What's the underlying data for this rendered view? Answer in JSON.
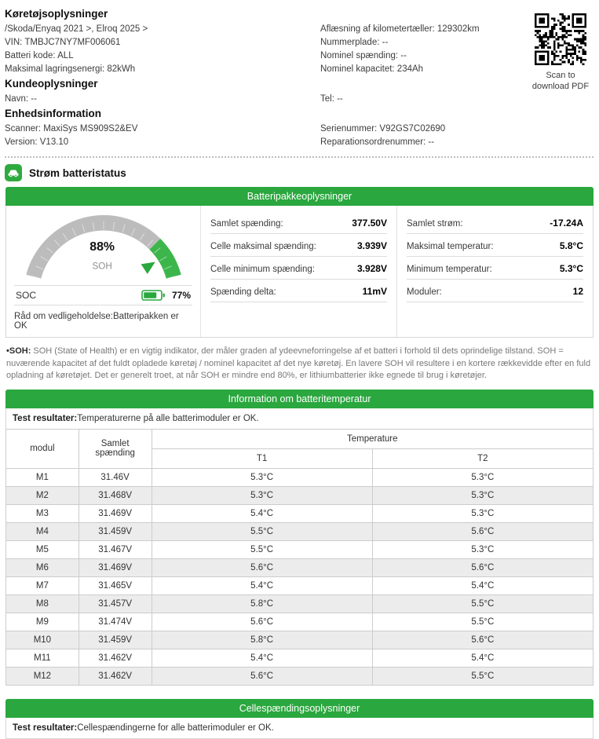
{
  "accent": {
    "green": "#2aa73e",
    "gauge_green": "#3cb64b",
    "gauge_gray": "#bcbcbc"
  },
  "vehicle_info": {
    "title": "Køretøjsoplysninger",
    "left_lines": [
      "/Skoda/Enyaq 2021 >, Elroq 2025 >",
      "VIN: TMBJC7NY7MF006061",
      "Batteri kode: ALL",
      "Maksimal lagringsenergi: 82kWh"
    ],
    "right_lines": [
      "Aflæsning af kilometertæller: 129302km",
      "Nummerplade: --",
      "Nominel spænding: --",
      "Nominel kapacitet: 234Ah"
    ],
    "qr_caption": "Scan to download PDF"
  },
  "customer_info": {
    "title": "Kundeoplysninger",
    "left_lines": [
      "Navn: --"
    ],
    "right_lines": [
      "Tel: --"
    ]
  },
  "device_info": {
    "title": "Enhedsinformation",
    "left_lines": [
      "Scanner: MaxiSys MS909S2&EV",
      "Version: V13.10"
    ],
    "right_lines": [
      "Serienummer: V92GS7C02690",
      "Reparationsordrenummer: --"
    ]
  },
  "report": {
    "section_title": "Strøm batteristatus"
  },
  "battery_pack": {
    "header": "Batteripakkeoplysninger",
    "soh_percent": "88%",
    "soh_label": "SOH",
    "soc_label": "SOC",
    "soc_percent": "77%",
    "advice": "Råd om vedligeholdelse:Batteripakken er OK",
    "metrics_col1": [
      {
        "label": "Samlet spænding:",
        "value": "377.50V"
      },
      {
        "label": "Celle maksimal spænding:",
        "value": "3.939V"
      },
      {
        "label": "Celle minimum spænding:",
        "value": "3.928V"
      },
      {
        "label": "Spænding delta:",
        "value": "11mV"
      }
    ],
    "metrics_col2": [
      {
        "label": "Samlet strøm:",
        "value": "-17.24A"
      },
      {
        "label": "Maksimal temperatur:",
        "value": "5.8°C"
      },
      {
        "label": "Minimum temperatur:",
        "value": "5.3°C"
      },
      {
        "label": "Moduler:",
        "value": "12"
      }
    ]
  },
  "soh_note": {
    "label": "•SOH:",
    "text": " SOH (State of Health) er en vigtig indikator, der måler graden af ydeevneforringelse af et batteri i forhold til dets oprindelige tilstand. SOH = nuværende kapacitet af det fuldt opladede køretøj / nominel kapacitet af det nye køretøj. En lavere SOH vil resultere i en kortere rækkevidde efter en fuld opladning af køretøjet. Det er generelt troet, at når SOH er mindre end 80%, er lithiumbatterier ikke egnede til brug i køretøjer."
  },
  "temperature_section": {
    "header": "Information om batteritemperatur",
    "test_result_label": "Test resultater:",
    "test_result": "Temperaturerne på alle batterimoduler er OK.",
    "table": {
      "col_module": "modul",
      "col_voltage": "Samlet spænding",
      "col_temp_group": "Temperature",
      "col_t1": "T1",
      "col_t2": "T2",
      "rows": [
        [
          "M1",
          "31.46V",
          "5.3°C",
          "5.3°C"
        ],
        [
          "M2",
          "31.468V",
          "5.3°C",
          "5.3°C"
        ],
        [
          "M3",
          "31.469V",
          "5.4°C",
          "5.3°C"
        ],
        [
          "M4",
          "31.459V",
          "5.5°C",
          "5.6°C"
        ],
        [
          "M5",
          "31.467V",
          "5.5°C",
          "5.3°C"
        ],
        [
          "M6",
          "31.469V",
          "5.6°C",
          "5.6°C"
        ],
        [
          "M7",
          "31.465V",
          "5.4°C",
          "5.4°C"
        ],
        [
          "M8",
          "31.457V",
          "5.8°C",
          "5.5°C"
        ],
        [
          "M9",
          "31.474V",
          "5.6°C",
          "5.5°C"
        ],
        [
          "M10",
          "31.459V",
          "5.8°C",
          "5.6°C"
        ],
        [
          "M11",
          "31.462V",
          "5.4°C",
          "5.4°C"
        ],
        [
          "M12",
          "31.462V",
          "5.6°C",
          "5.5°C"
        ]
      ]
    }
  },
  "cell_voltage_section": {
    "header": "Cellespændingsoplysninger",
    "test_result_label": "Test resultater:",
    "test_result": "Cellespændingerne for alle batterimoduler er OK."
  }
}
